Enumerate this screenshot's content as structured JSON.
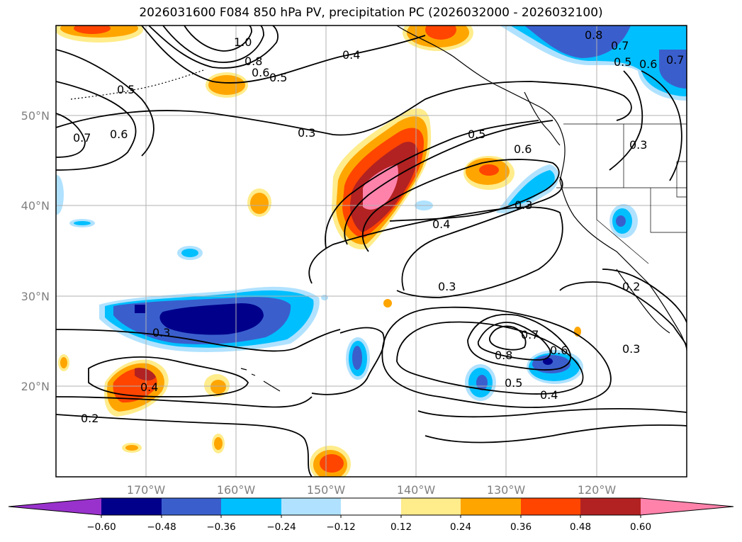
{
  "figure": {
    "title": "2026031600 F084 850 hPa PV, precipitation PC (2026032000 - 2026032100)"
  },
  "map": {
    "lat_labels": [
      "50°N",
      "40°N",
      "30°N",
      "20°N"
    ],
    "lon_labels": [
      "170°W",
      "160°W",
      "150°W",
      "140°W",
      "130°W",
      "120°W"
    ]
  },
  "colorbar": {
    "bins": [
      {
        "color": "#9932cc"
      },
      {
        "color": "#00008b"
      },
      {
        "color": "#3a5fcd"
      },
      {
        "color": "#00bfff"
      },
      {
        "color": "#b0e2ff"
      },
      {
        "color": "#ffffff"
      },
      {
        "color": "#ffec8b"
      },
      {
        "color": "#ffa500"
      },
      {
        "color": "#ff4500"
      },
      {
        "color": "#b22222"
      },
      {
        "color": "#ff82ab"
      }
    ],
    "tick_labels": [
      "−0.60",
      "−0.48",
      "−0.36",
      "−0.24",
      "−0.12",
      "0.12",
      "0.24",
      "0.36",
      "0.48",
      "0.60"
    ]
  },
  "contour_labels": [
    "1.0",
    "0.8",
    "0.6",
    "0.5",
    "0.5",
    "0.7",
    "0.6",
    "0.4",
    "0.3",
    "0.5",
    "0.6",
    "0.8",
    "0.7",
    "0.5",
    "0.6",
    "0.7",
    "0.3",
    "0.4",
    "0.3",
    "0.2",
    "0.3",
    "0.3",
    "0.4",
    "0.2",
    "0.7",
    "0.8",
    "0.6",
    "0.5",
    "0.4",
    "0.3"
  ]
}
